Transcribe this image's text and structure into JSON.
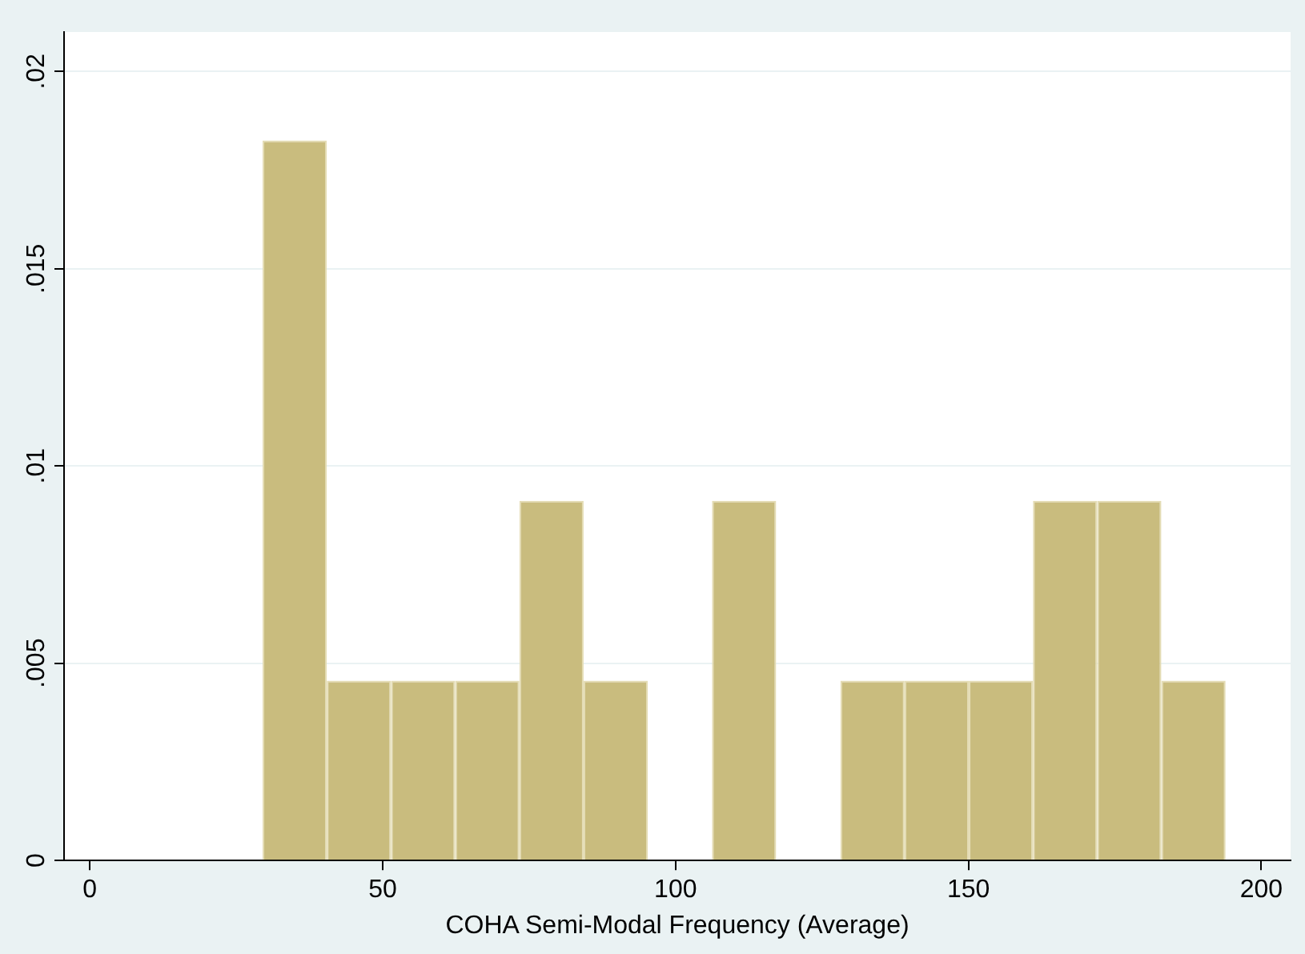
{
  "chart_data": {
    "type": "histogram",
    "xlabel": "COHA Semi-Modal Frequency (Average)",
    "bins": [
      29.5,
      40.46,
      51.42,
      62.38,
      73.34,
      84.3,
      95.26,
      106.22,
      117.18,
      128.14,
      139.1,
      150.06,
      161.02,
      171.98,
      182.94,
      193.9
    ],
    "values": [
      0.01825,
      0.00456,
      0.00456,
      0.00456,
      0.00912,
      0.00456,
      0,
      0.00912,
      0,
      0.00456,
      0.00456,
      0.00456,
      0.00912,
      0.00912,
      0.00456
    ],
    "color": "#c9bc7e",
    "xlim": [
      -4.4,
      205
    ],
    "xticks": [
      0,
      50,
      100,
      150,
      200
    ],
    "ylim": [
      0,
      0.021
    ],
    "yticks": [
      0,
      {
        "value": 0.005,
        "label": ".005"
      },
      {
        "value": 0.01,
        "label": ".01"
      },
      {
        "value": 0.015,
        "label": ".015"
      },
      {
        "value": 0.02,
        "label": ".02"
      }
    ],
    "grid": "y",
    "legend": false
  }
}
